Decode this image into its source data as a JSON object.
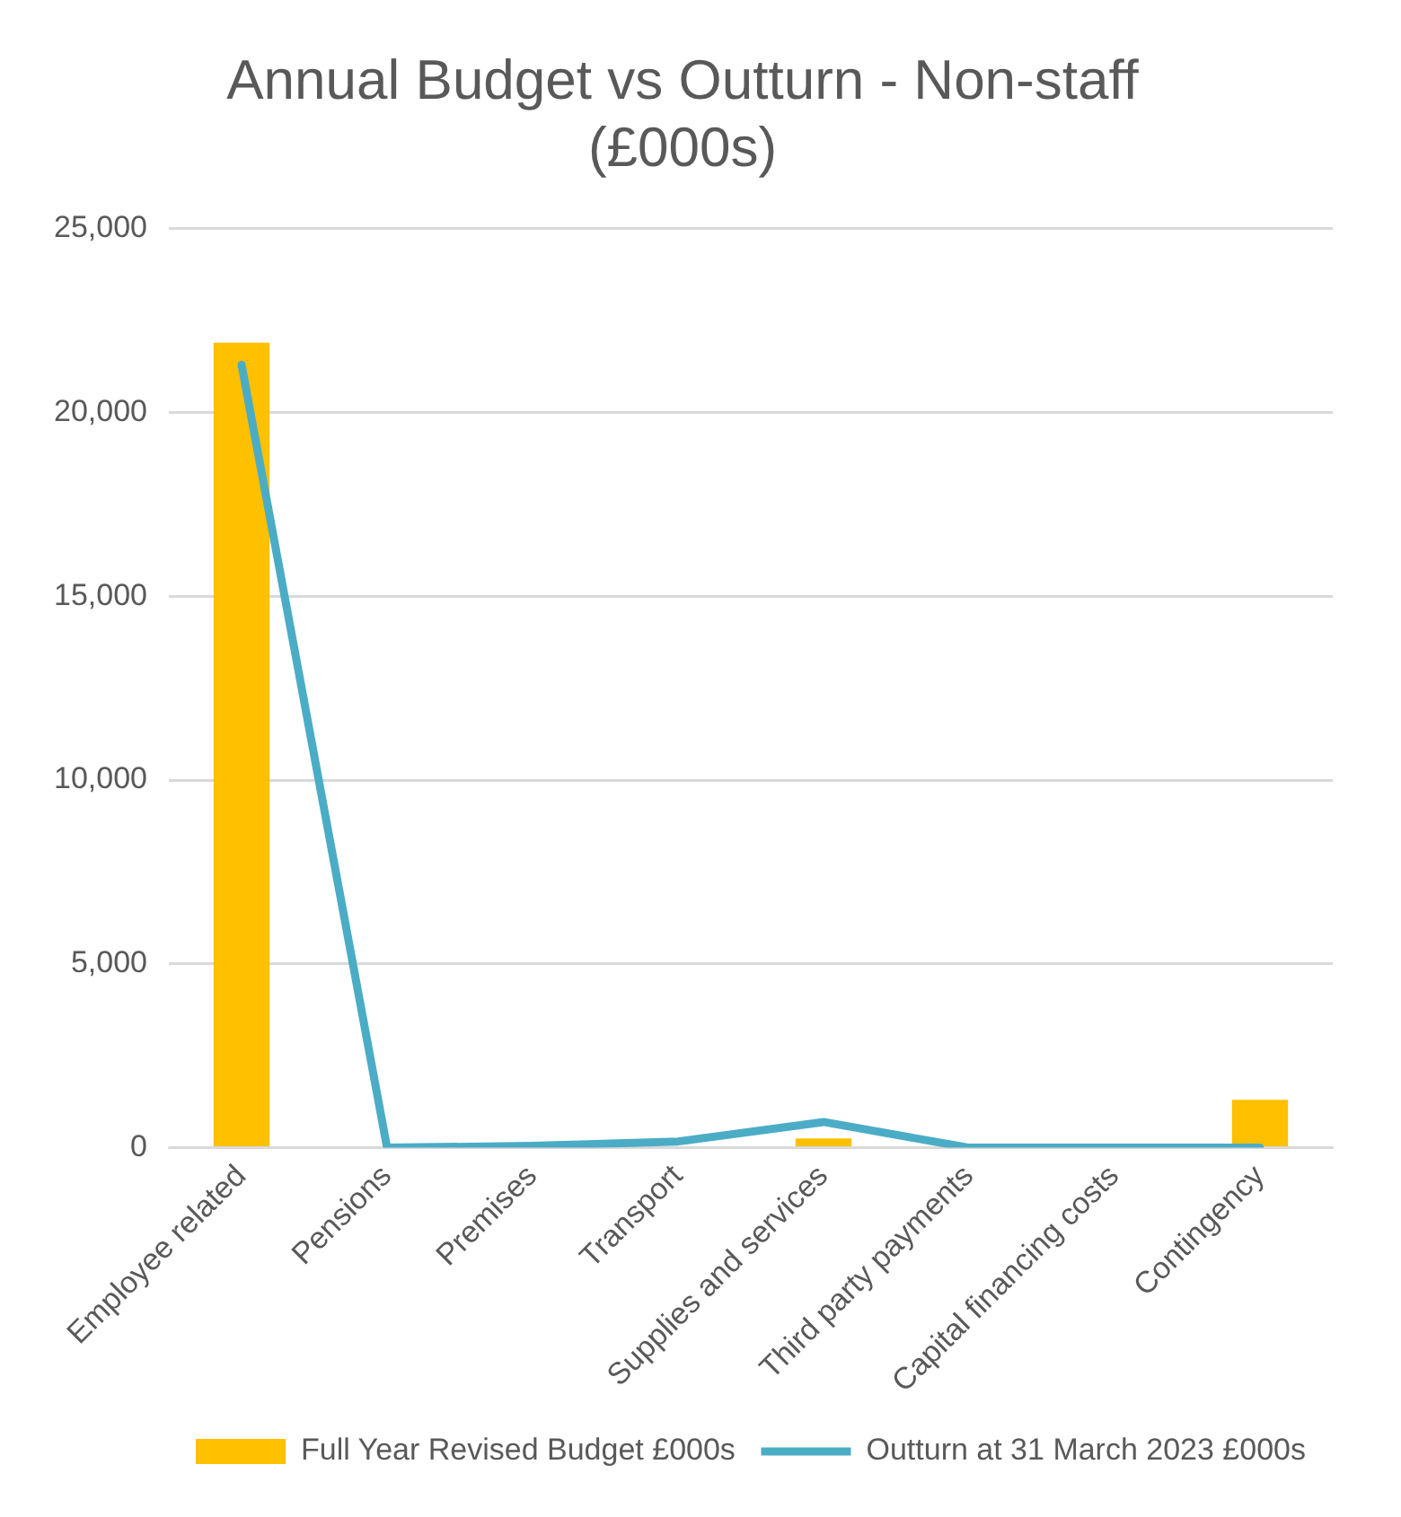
{
  "chart_data": {
    "type": "bar",
    "title": "Annual Budget vs Outturn - Non-staff (£000s)",
    "categories": [
      "Employee related",
      "Pensions",
      "Premises",
      "Transport",
      "Supplies and services",
      "Third party payments",
      "Capital financing costs",
      "Contingency"
    ],
    "series": [
      {
        "name": "Full Year Revised Budget £000s",
        "color": "#ffc000",
        "values": [
          21900,
          0,
          0,
          0,
          250,
          0,
          0,
          1300
        ]
      },
      {
        "name": "Outturn at 31 March 2023 £000s",
        "type": "line",
        "color": "#4bacc6",
        "values": [
          21300,
          0,
          50,
          170,
          700,
          0,
          0,
          0
        ]
      }
    ],
    "ylim": [
      0,
      25000
    ],
    "yticks": [
      {
        "value": 0,
        "label": "0"
      },
      {
        "value": 5000,
        "label": "5,000"
      },
      {
        "value": 10000,
        "label": "10,000"
      },
      {
        "value": 15000,
        "label": "15,000"
      },
      {
        "value": 20000,
        "label": "20,000"
      },
      {
        "value": 25000,
        "label": "25,000"
      }
    ],
    "grid": "y",
    "legend": "bottom",
    "marker": "none"
  }
}
